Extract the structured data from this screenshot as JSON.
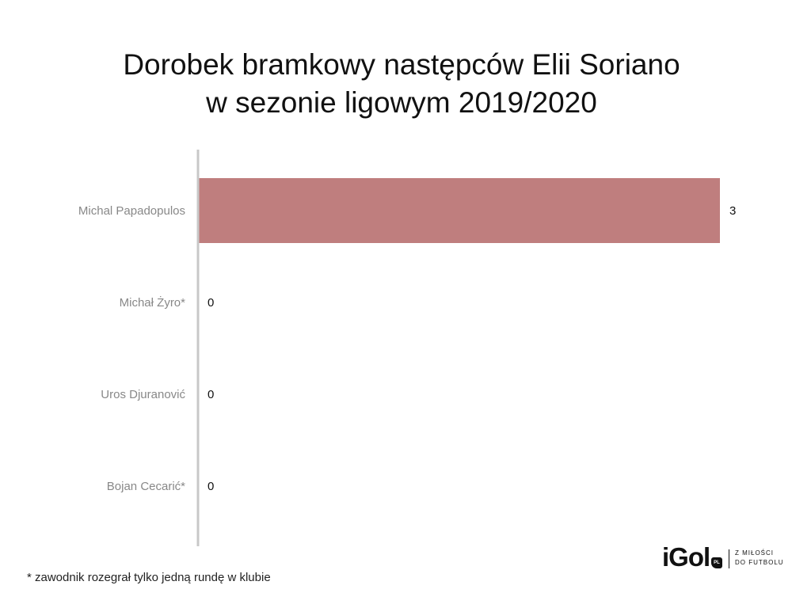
{
  "title_lines": [
    "Dorobek bramkowy następców Elii Soriano",
    "w sezonie ligowym 2019/2020"
  ],
  "footnote": "* zawodnik rozegrał tylko jedną rundę w klubie",
  "logo": {
    "word": "iGol",
    "badge": "PL",
    "tag_lines": [
      "Z MIŁOŚCI",
      "DO FUTBOLU"
    ]
  },
  "colors": {
    "bar": "#bf7e7e",
    "axis": "#c8c8c8",
    "category_text": "#888888",
    "value_text": "#111111"
  },
  "chart_data": {
    "type": "bar",
    "orientation": "horizontal",
    "title": "Dorobek bramkowy następców Elii Soriano w sezonie ligowym 2019/2020",
    "categories": [
      "Michal Papadopulos",
      "Michał Żyro*",
      "Uros Djuranović",
      "Bojan Cecarić*"
    ],
    "values": [
      3,
      0,
      0,
      0
    ],
    "data_labels": [
      "3",
      "0",
      "0",
      "0"
    ],
    "xlim": [
      0,
      3
    ],
    "grid": false,
    "legend": "none"
  }
}
